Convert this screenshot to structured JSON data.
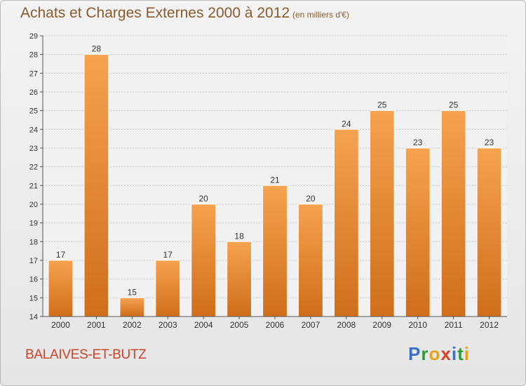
{
  "title": "Achats et Charges Externes 2000 à 2012",
  "subtitle": "(en milliers d'€)",
  "place": "BALAIVES-ET-BUTZ",
  "logo": {
    "text": "Proxiti",
    "letters": [
      {
        "char": "P",
        "color": "#3c6fc9"
      },
      {
        "char": "r",
        "color": "#2f9a3d"
      },
      {
        "char": "o",
        "color": "#e8a21a"
      },
      {
        "char": "x",
        "color": "#d8402b"
      },
      {
        "char": "i",
        "color": "#3c6fc9"
      },
      {
        "char": "t",
        "color": "#2f9a3d"
      },
      {
        "char": "i",
        "color": "#e8a21a"
      }
    ]
  },
  "colors": {
    "bar_light": "#f6a24f",
    "bar_dark": "#cf6e1b",
    "grid": "#cccccc",
    "axis": "#555555",
    "text": "#333333"
  },
  "chart_data": {
    "type": "bar",
    "categories": [
      "2000",
      "2001",
      "2002",
      "2003",
      "2004",
      "2005",
      "2006",
      "2007",
      "2008",
      "2009",
      "2010",
      "2011",
      "2012"
    ],
    "values": [
      17,
      28,
      15,
      17,
      20,
      18,
      21,
      20,
      24,
      25,
      23,
      25,
      23
    ],
    "data_labels": [
      "17",
      "28",
      "15",
      "17",
      "20",
      "18",
      "21",
      "20",
      "24",
      "25",
      "23",
      "25",
      "23"
    ],
    "ylim": [
      14,
      29
    ],
    "yticks": [
      14,
      15,
      16,
      17,
      18,
      19,
      20,
      21,
      22,
      23,
      24,
      25,
      26,
      27,
      28,
      29
    ],
    "grid": true
  }
}
